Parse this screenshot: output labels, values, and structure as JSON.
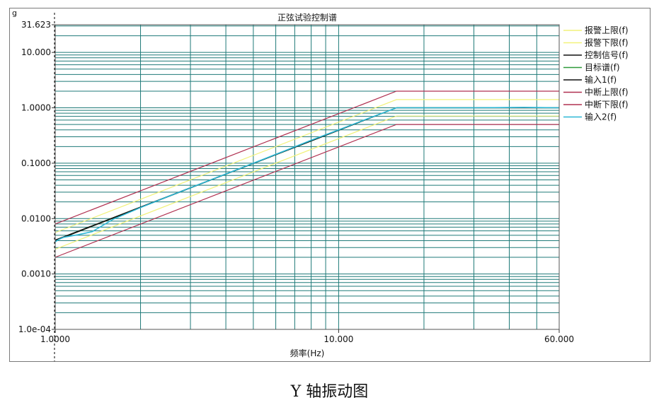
{
  "chart_data": {
    "type": "line",
    "title": "正弦试验控制谱",
    "xlabel": "频率(Hz)",
    "ylabel": "g",
    "x_scale": "log",
    "y_scale": "log",
    "xlim": [
      1,
      60
    ],
    "ylim": [
      0.0001,
      31.623
    ],
    "grid": true,
    "legend_position": "right",
    "x_ticks": [
      {
        "value": 1,
        "label": "1.0000"
      },
      {
        "value": 10,
        "label": "10.000"
      },
      {
        "value": 60,
        "label": "60.000"
      }
    ],
    "y_ticks": [
      {
        "value": 31.623,
        "label": "31.623"
      },
      {
        "value": 10,
        "label": "10.000"
      },
      {
        "value": 1,
        "label": "1.0000"
      },
      {
        "value": 0.1,
        "label": "0.1000"
      },
      {
        "value": 0.01,
        "label": "0.0100"
      },
      {
        "value": 0.001,
        "label": "0.0010"
      },
      {
        "value": 0.0001,
        "label": "1.0e-04"
      }
    ],
    "series": [
      {
        "name": "报警上限(f)",
        "color": "#f2f27a",
        "dash": false,
        "x": [
          1,
          16,
          16,
          60
        ],
        "y": [
          0.0056,
          1.41,
          1.41,
          1.41
        ]
      },
      {
        "name": "报警下限(f)",
        "color": "#f2f27a",
        "dash": false,
        "x": [
          1,
          16,
          16,
          60
        ],
        "y": [
          0.0028,
          0.71,
          0.71,
          0.71
        ]
      },
      {
        "name": "控制信号(f)",
        "color": "#111111",
        "dash": false,
        "x": [
          1,
          16,
          60
        ],
        "y": [
          0.0041,
          1.0,
          1.0
        ]
      },
      {
        "name": "目标谱(f)",
        "color": "#2f9a3a",
        "dash": false,
        "x": [
          1,
          16,
          60
        ],
        "y": [
          0.004,
          1.0,
          1.0
        ]
      },
      {
        "name": "输入1(f)",
        "color": "#111111",
        "dash": false,
        "x": [
          1,
          16,
          60
        ],
        "y": [
          0.004,
          1.0,
          1.0
        ]
      },
      {
        "name": "中断上限(f)",
        "color": "#b03050",
        "dash": false,
        "x": [
          1,
          16,
          16,
          60
        ],
        "y": [
          0.008,
          2.0,
          2.0,
          2.0
        ]
      },
      {
        "name": "中断下限(f)",
        "color": "#b03050",
        "dash": false,
        "x": [
          1,
          16,
          16,
          60
        ],
        "y": [
          0.002,
          0.5,
          0.5,
          0.5
        ]
      },
      {
        "name": "输入2(f)",
        "color": "#2bb7d6",
        "dash": false,
        "x": [
          1,
          1.03,
          1.07,
          1.12,
          1.2,
          1.35,
          1.6,
          2.0,
          2.5,
          3.2,
          4.0,
          5.0,
          6.5,
          8.0,
          10,
          12.5,
          16,
          20,
          30,
          45,
          60
        ],
        "y": [
          0.0038,
          0.0042,
          0.0046,
          0.0048,
          0.0051,
          0.0058,
          0.0097,
          0.0158,
          0.025,
          0.041,
          0.064,
          0.1,
          0.17,
          0.26,
          0.4,
          0.62,
          1.0,
          1.0,
          1.0,
          1.02,
          1.0
        ]
      }
    ]
  },
  "caption": "Y 轴振动图"
}
